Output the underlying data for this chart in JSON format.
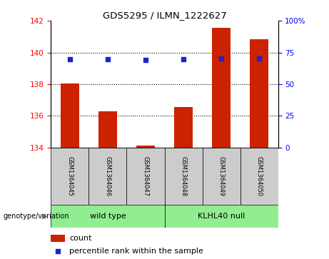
{
  "title": "GDS5295 / ILMN_1222627",
  "samples": [
    "GSM1364045",
    "GSM1364046",
    "GSM1364047",
    "GSM1364048",
    "GSM1364049",
    "GSM1364050"
  ],
  "bar_values": [
    138.05,
    136.3,
    134.12,
    136.55,
    141.55,
    140.85
  ],
  "bar_bottom": 134.0,
  "percentile_values": [
    69.5,
    69.5,
    69.0,
    69.5,
    70.5,
    70.5
  ],
  "bar_color": "#cc2200",
  "dot_color": "#2222cc",
  "ylim_left": [
    134,
    142
  ],
  "ylim_right": [
    0,
    100
  ],
  "yticks_left": [
    134,
    136,
    138,
    140,
    142
  ],
  "yticks_right": [
    0,
    25,
    50,
    75,
    100
  ],
  "grid_values": [
    136,
    138,
    140
  ],
  "groups": [
    {
      "label": "wild type",
      "indices": [
        0,
        1,
        2
      ]
    },
    {
      "label": "KLHL40 null",
      "indices": [
        3,
        4,
        5
      ]
    }
  ],
  "group_color": "#90ee90",
  "sample_box_color": "#cccccc",
  "legend_count_label": "count",
  "legend_pct_label": "percentile rank within the sample",
  "genotype_label": "genotype/variation"
}
